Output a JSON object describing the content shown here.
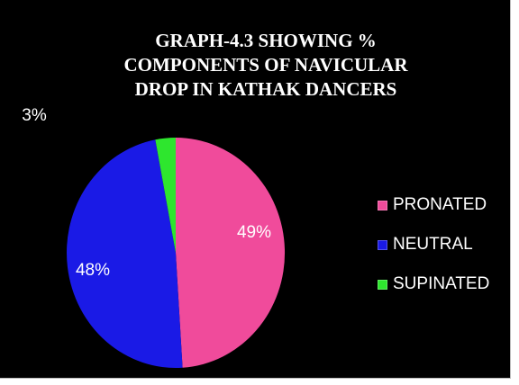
{
  "chart_data": {
    "type": "pie",
    "title_lines": [
      "GRAPH-4.3 SHOWING %",
      "COMPONENTS OF NAVICULAR",
      "DROP IN KATHAK DANCERS"
    ],
    "categories": [
      "PRONATED",
      "NEUTRAL",
      "SUPINATED"
    ],
    "values": [
      49,
      48,
      3
    ],
    "labels": [
      "49%",
      "48%",
      "3%"
    ],
    "colors": [
      "#f04b9b",
      "#1a1ae6",
      "#2ee62e"
    ],
    "legend_position": "right"
  }
}
